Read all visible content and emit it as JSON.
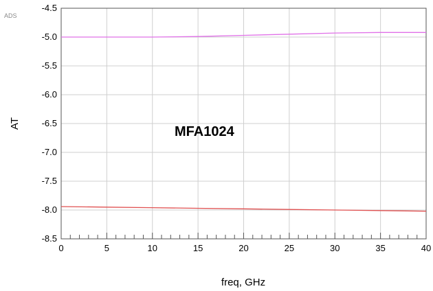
{
  "watermark": "ADS",
  "chart_data": {
    "type": "line",
    "title": "",
    "xlabel": "freq, GHz",
    "ylabel": "AT",
    "xlim": [
      0,
      40
    ],
    "ylim": [
      -8.5,
      -4.5
    ],
    "xticks": [
      0,
      5,
      10,
      15,
      20,
      25,
      30,
      35,
      40
    ],
    "xtick_labels": [
      "0",
      "5",
      "10",
      "15",
      "20",
      "25",
      "30",
      "35",
      "40"
    ],
    "yticks": [
      -4.5,
      -5.0,
      -5.5,
      -6.0,
      -6.5,
      -7.0,
      -7.5,
      -8.0,
      -8.5
    ],
    "ytick_labels": [
      "-4.5",
      "-5.0",
      "-5.5",
      "-6.0",
      "-6.5",
      "-7.0",
      "-7.5",
      "-8.0",
      "-8.5"
    ],
    "grid": true,
    "annotation": "MFA1024",
    "series": [
      {
        "color": "#e070e8",
        "x": [
          0,
          5,
          10,
          15,
          20,
          25,
          30,
          35,
          40
        ],
        "y": [
          -5.0,
          -5.0,
          -5.0,
          -4.99,
          -4.97,
          -4.95,
          -4.93,
          -4.92,
          -4.92
        ]
      },
      {
        "color": "#e05050",
        "x": [
          0,
          5,
          10,
          15,
          20,
          25,
          30,
          35,
          40
        ],
        "y": [
          -7.94,
          -7.95,
          -7.96,
          -7.97,
          -7.98,
          -7.99,
          -8.0,
          -8.01,
          -8.02
        ]
      }
    ]
  }
}
